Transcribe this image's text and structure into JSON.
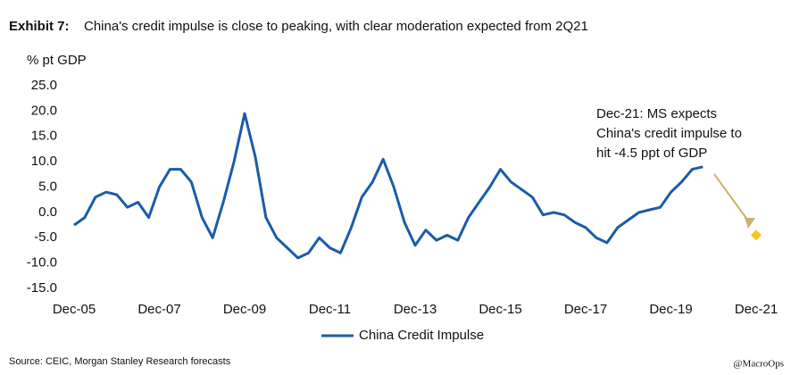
{
  "chart_data": {
    "type": "line",
    "title_label": "Exhibit 7:",
    "title": "China's credit impulse is close to peaking, with clear moderation expected from 2Q21",
    "y_axis_label": "% pt GDP",
    "categories": [
      "Dec-05",
      null,
      null,
      null,
      null,
      null,
      null,
      null,
      "Dec-07",
      null,
      null,
      null,
      null,
      null,
      null,
      null,
      "Dec-09",
      null,
      null,
      null,
      null,
      null,
      null,
      null,
      "Dec-11",
      null,
      null,
      null,
      null,
      null,
      null,
      null,
      "Dec-13",
      null,
      null,
      null,
      null,
      null,
      null,
      null,
      "Dec-15",
      null,
      null,
      null,
      null,
      null,
      null,
      null,
      "Dec-17",
      null,
      null,
      null,
      null,
      null,
      null,
      null,
      "Dec-19",
      null,
      null,
      null,
      null,
      null,
      null,
      null,
      "Dec-21"
    ],
    "series": [
      {
        "name": "China Credit Impulse",
        "color": "#1a5ca8",
        "values": [
          -2.5,
          -1,
          3,
          4,
          3.5,
          1,
          2,
          -1,
          5,
          8.5,
          8.5,
          6,
          -1,
          -5,
          2,
          10,
          19.5,
          11,
          -1,
          -5,
          -7,
          -9,
          -8,
          -5,
          -7,
          -8,
          -3,
          3,
          6,
          10.5,
          5,
          -2,
          -6.5,
          -3.5,
          -5.5,
          -4.5,
          -5.5,
          -1,
          2,
          5,
          8.5,
          6,
          4.5,
          3,
          -0.5,
          0,
          -0.5,
          -2,
          -3,
          -5,
          -6,
          -3,
          -1.5,
          0,
          0.5,
          1,
          4,
          6,
          8.5,
          9,
          null,
          null,
          null,
          null,
          null
        ]
      },
      {
        "color": "#f5c518",
        "marker": "diamond",
        "values": [
          null,
          null,
          null,
          null,
          null,
          null,
          null,
          null,
          null,
          null,
          null,
          null,
          null,
          null,
          null,
          null,
          null,
          null,
          null,
          null,
          null,
          null,
          null,
          null,
          null,
          null,
          null,
          null,
          null,
          null,
          null,
          null,
          null,
          null,
          null,
          null,
          null,
          null,
          null,
          null,
          null,
          null,
          null,
          null,
          null,
          null,
          null,
          null,
          null,
          null,
          null,
          null,
          null,
          null,
          null,
          null,
          null,
          null,
          null,
          null,
          null,
          null,
          null,
          null,
          -4.5
        ]
      }
    ],
    "ylim": [
      -15,
      25
    ],
    "yticks": [
      {
        "value": -15,
        "label": "-15.0"
      },
      {
        "value": -10,
        "label": "-10.0"
      },
      {
        "value": -5,
        "label": "-5.0"
      },
      {
        "value": 0,
        "label": "0.0"
      },
      {
        "value": 5,
        "label": "5.0"
      },
      {
        "value": 10,
        "label": "10.0"
      },
      {
        "value": 15,
        "label": "15.0"
      },
      {
        "value": 20,
        "label": "20.0"
      },
      {
        "value": 25,
        "label": "25.0"
      }
    ],
    "annotation": [
      "Dec-21: MS expects",
      "China's credit impulse to",
      "hit -4.5 ppt of GDP"
    ],
    "source": "Source: CEIC, Morgan Stanley Research forecasts",
    "watermark": "@MacroOps"
  }
}
